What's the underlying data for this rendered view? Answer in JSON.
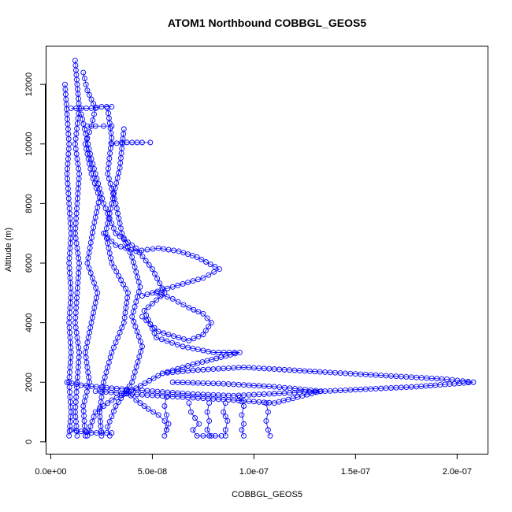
{
  "chart_data": {
    "type": "scatter",
    "title": "ATOM1 Northbound COBBGL_GEOS5",
    "xlabel": "COBBGL_GEOS5",
    "ylabel": "Altitude (m)",
    "xlim": [
      -2.5e-09,
      2.15e-07
    ],
    "ylim": [
      -400,
      13300
    ],
    "x_ticks": [
      0,
      5e-08,
      1e-07,
      1.5e-07,
      2e-07
    ],
    "x_tick_labels": [
      "0.0e+00",
      "5.0e-08",
      "1.0e-07",
      "1.5e-07",
      "2.0e-07"
    ],
    "y_ticks": [
      0,
      2000,
      4000,
      6000,
      8000,
      10000,
      12000
    ],
    "y_tick_labels": [
      "0",
      "2000",
      "4000",
      "6000",
      "8000",
      "10000",
      "12000"
    ],
    "marker": "open-circle",
    "color": "#0000ff",
    "series": [
      {
        "points": [
          [
            7e-09,
            12000
          ],
          [
            8e-09,
            11000
          ],
          [
            9e-09,
            10000
          ],
          [
            8e-09,
            9000
          ],
          [
            9e-09,
            8000
          ],
          [
            1e-08,
            7000
          ],
          [
            9e-09,
            6000
          ],
          [
            1e-08,
            5000
          ],
          [
            9e-09,
            4000
          ],
          [
            1e-08,
            3000
          ],
          [
            9e-09,
            2000
          ],
          [
            1e-08,
            1000
          ],
          [
            9e-09,
            200
          ]
        ]
      },
      {
        "points": [
          [
            1.2e-08,
            12800
          ],
          [
            1.3e-08,
            12000
          ],
          [
            1.4e-08,
            11200
          ],
          [
            1.2e-08,
            10000
          ],
          [
            1.4e-08,
            9000
          ],
          [
            1.3e-08,
            8000
          ],
          [
            1.2e-08,
            7000
          ],
          [
            1.4e-08,
            6000
          ],
          [
            1.3e-08,
            5000
          ],
          [
            1.2e-08,
            4000
          ],
          [
            1.4e-08,
            3000
          ],
          [
            1.3e-08,
            2000
          ],
          [
            1.2e-08,
            1000
          ],
          [
            1.3e-08,
            200
          ]
        ]
      },
      {
        "points": [
          [
            1.6e-08,
            12400
          ],
          [
            1.8e-08,
            11800
          ],
          [
            2.2e-08,
            11200
          ],
          [
            2e-08,
            10600
          ],
          [
            1.7e-08,
            10000
          ],
          [
            2e-08,
            9000
          ],
          [
            2.4e-08,
            8200
          ],
          [
            2.1e-08,
            7200
          ],
          [
            1.8e-08,
            6000
          ],
          [
            2.3e-08,
            5000
          ],
          [
            2e-08,
            4000
          ],
          [
            1.7e-08,
            3000
          ],
          [
            1.9e-08,
            2000
          ],
          [
            1.6e-08,
            1200
          ],
          [
            1.7e-08,
            200
          ]
        ]
      },
      {
        "points": [
          [
            2.8e-08,
            11200
          ],
          [
            3e-08,
            10200
          ],
          [
            2.8e-08,
            9000
          ],
          [
            3.2e-08,
            8000
          ],
          [
            3.5e-08,
            7000
          ],
          [
            4e-08,
            6200
          ],
          [
            4.4e-08,
            5200
          ],
          [
            4e-08,
            4200
          ],
          [
            4.5e-08,
            3200
          ],
          [
            4e-08,
            2000
          ],
          [
            3.2e-08,
            1200
          ],
          [
            2.8e-08,
            500
          ],
          [
            2.9e-08,
            200
          ]
        ]
      },
      {
        "points": [
          [
            3.6e-08,
            10500
          ],
          [
            3.4e-08,
            9200
          ],
          [
            3e-08,
            8000
          ],
          [
            2.7e-08,
            7000
          ],
          [
            3e-08,
            6000
          ],
          [
            3.8e-08,
            5000
          ],
          [
            3.6e-08,
            4000
          ],
          [
            3e-08,
            3000
          ],
          [
            2.6e-08,
            2000
          ],
          [
            2.4e-08,
            1000
          ],
          [
            2.5e-08,
            200
          ]
        ]
      },
      {
        "points": [
          [
            1.5e-08,
            11000
          ],
          [
            2e-08,
            9500
          ],
          [
            2.6e-08,
            8000
          ],
          [
            3.2e-08,
            7000
          ],
          [
            4.2e-08,
            6500
          ],
          [
            5e-08,
            5800
          ],
          [
            5.6e-08,
            5000
          ],
          [
            4.6e-08,
            4400
          ],
          [
            5.2e-08,
            3500
          ],
          [
            6.5e-08,
            3200
          ],
          [
            8e-08,
            3000
          ],
          [
            9.3e-08,
            3000
          ],
          [
            7e-08,
            2600
          ],
          [
            5.5e-08,
            2300
          ],
          [
            4.2e-08,
            1800
          ],
          [
            3e-08,
            1400
          ],
          [
            2.2e-08,
            1000
          ],
          [
            1.8e-08,
            200
          ]
        ]
      },
      {
        "points": [
          [
            2.6e-08,
            7000
          ],
          [
            3.2e-08,
            6600
          ],
          [
            4.2e-08,
            6400
          ],
          [
            5.3e-08,
            6500
          ],
          [
            6.3e-08,
            6400
          ],
          [
            7.2e-08,
            6200
          ],
          [
            8.3e-08,
            5800
          ],
          [
            7.5e-08,
            5500
          ],
          [
            6.5e-08,
            5300
          ],
          [
            5.5e-08,
            5100
          ],
          [
            4.5e-08,
            4900
          ]
        ]
      },
      {
        "points": [
          [
            4.5e-08,
            4200
          ],
          [
            5.3e-08,
            3700
          ],
          [
            6.8e-08,
            3400
          ],
          [
            7.5e-08,
            3600
          ],
          [
            7.9e-08,
            4000
          ],
          [
            7.5e-08,
            4300
          ],
          [
            6.8e-08,
            4500
          ],
          [
            6e-08,
            4800
          ],
          [
            5.2e-08,
            5000
          ]
        ]
      },
      {
        "points": [
          [
            8e-09,
            2000
          ],
          [
            1.5e-08,
            1900
          ],
          [
            3e-08,
            1800
          ],
          [
            5e-08,
            1700
          ],
          [
            7e-08,
            1600
          ],
          [
            9e-08,
            1550
          ],
          [
            1.2e-07,
            1650
          ],
          [
            1.5e-07,
            1750
          ],
          [
            1.8e-07,
            1850
          ],
          [
            2.08e-07,
            2000
          ],
          [
            1.95e-07,
            2100
          ],
          [
            1.7e-07,
            2200
          ],
          [
            1.45e-07,
            2300
          ],
          [
            1.2e-07,
            2400
          ],
          [
            9.5e-08,
            2500
          ],
          [
            7e-08,
            2400
          ],
          [
            5.5e-08,
            2300
          ]
        ]
      },
      {
        "points": [
          [
            2.2e-08,
            1700
          ],
          [
            4e-08,
            1600
          ],
          [
            6.5e-08,
            1500
          ],
          [
            9e-08,
            1400
          ],
          [
            1.1e-07,
            1300
          ],
          [
            1.33e-07,
            1700
          ],
          [
            1.1e-07,
            1850
          ],
          [
            8.5e-08,
            1950
          ],
          [
            6e-08,
            2000
          ]
        ]
      },
      {
        "points": [
          [
            5.7e-08,
            1500
          ],
          [
            5.6e-08,
            1200
          ],
          [
            5.7e-08,
            900
          ],
          [
            5.8e-08,
            600
          ],
          [
            5.7e-08,
            400
          ],
          [
            5.6e-08,
            200
          ]
        ]
      },
      {
        "points": [
          [
            6.8e-08,
            1300
          ],
          [
            6.9e-08,
            1000
          ],
          [
            7.1e-08,
            800
          ],
          [
            7.3e-08,
            600
          ],
          [
            7e-08,
            400
          ],
          [
            7.2e-08,
            200
          ],
          [
            7.5e-08,
            200
          ],
          [
            7.8e-08,
            200
          ],
          [
            8.1e-08,
            200
          ],
          [
            8.4e-08,
            200
          ]
        ]
      },
      {
        "points": [
          [
            7.8e-08,
            1300
          ],
          [
            7.7e-08,
            1000
          ],
          [
            7.8e-08,
            700
          ],
          [
            7.7e-08,
            400
          ],
          [
            7.9e-08,
            200
          ]
        ]
      },
      {
        "points": [
          [
            8.6e-08,
            1300
          ],
          [
            8.5e-08,
            1000
          ],
          [
            8.7e-08,
            700
          ],
          [
            8.6e-08,
            400
          ],
          [
            8.6e-08,
            200
          ]
        ]
      },
      {
        "points": [
          [
            9.3e-08,
            1500
          ],
          [
            9.5e-08,
            1200
          ],
          [
            9.4e-08,
            900
          ],
          [
            9.5e-08,
            600
          ],
          [
            9.4e-08,
            400
          ],
          [
            9.5e-08,
            200
          ]
        ]
      },
      {
        "points": [
          [
            1.06e-07,
            1300
          ],
          [
            1.07e-07,
            1000
          ],
          [
            1.06e-07,
            700
          ],
          [
            1.07e-07,
            400
          ],
          [
            1.08e-07,
            200
          ]
        ]
      },
      {
        "points": [
          [
            3e-08,
            10000
          ],
          [
            3.5e-08,
            10050
          ],
          [
            4e-08,
            10050
          ],
          [
            4.5e-08,
            10050
          ],
          [
            4.9e-08,
            10050
          ]
        ]
      },
      {
        "points": [
          [
            1e-08,
            11200
          ],
          [
            1.5e-08,
            11200
          ],
          [
            2e-08,
            11200
          ],
          [
            2.5e-08,
            11250
          ],
          [
            3e-08,
            11250
          ]
        ]
      },
      {
        "points": [
          [
            1.8e-08,
            10600
          ],
          [
            2.2e-08,
            10600
          ],
          [
            2.6e-08,
            10600
          ],
          [
            3e-08,
            10600
          ]
        ]
      },
      {
        "points": [
          [
            1e-08,
            400
          ],
          [
            1.5e-08,
            350
          ],
          [
            2e-08,
            300
          ],
          [
            2.5e-08,
            300
          ],
          [
            3e-08,
            300
          ]
        ]
      },
      {
        "points": [
          [
            3.7e-08,
            1700
          ],
          [
            4.2e-08,
            1400
          ],
          [
            4.8e-08,
            1100
          ],
          [
            5.3e-08,
            900
          ],
          [
            5.6e-08,
            700
          ],
          [
            5.7e-08,
            400
          ]
        ]
      }
    ]
  }
}
